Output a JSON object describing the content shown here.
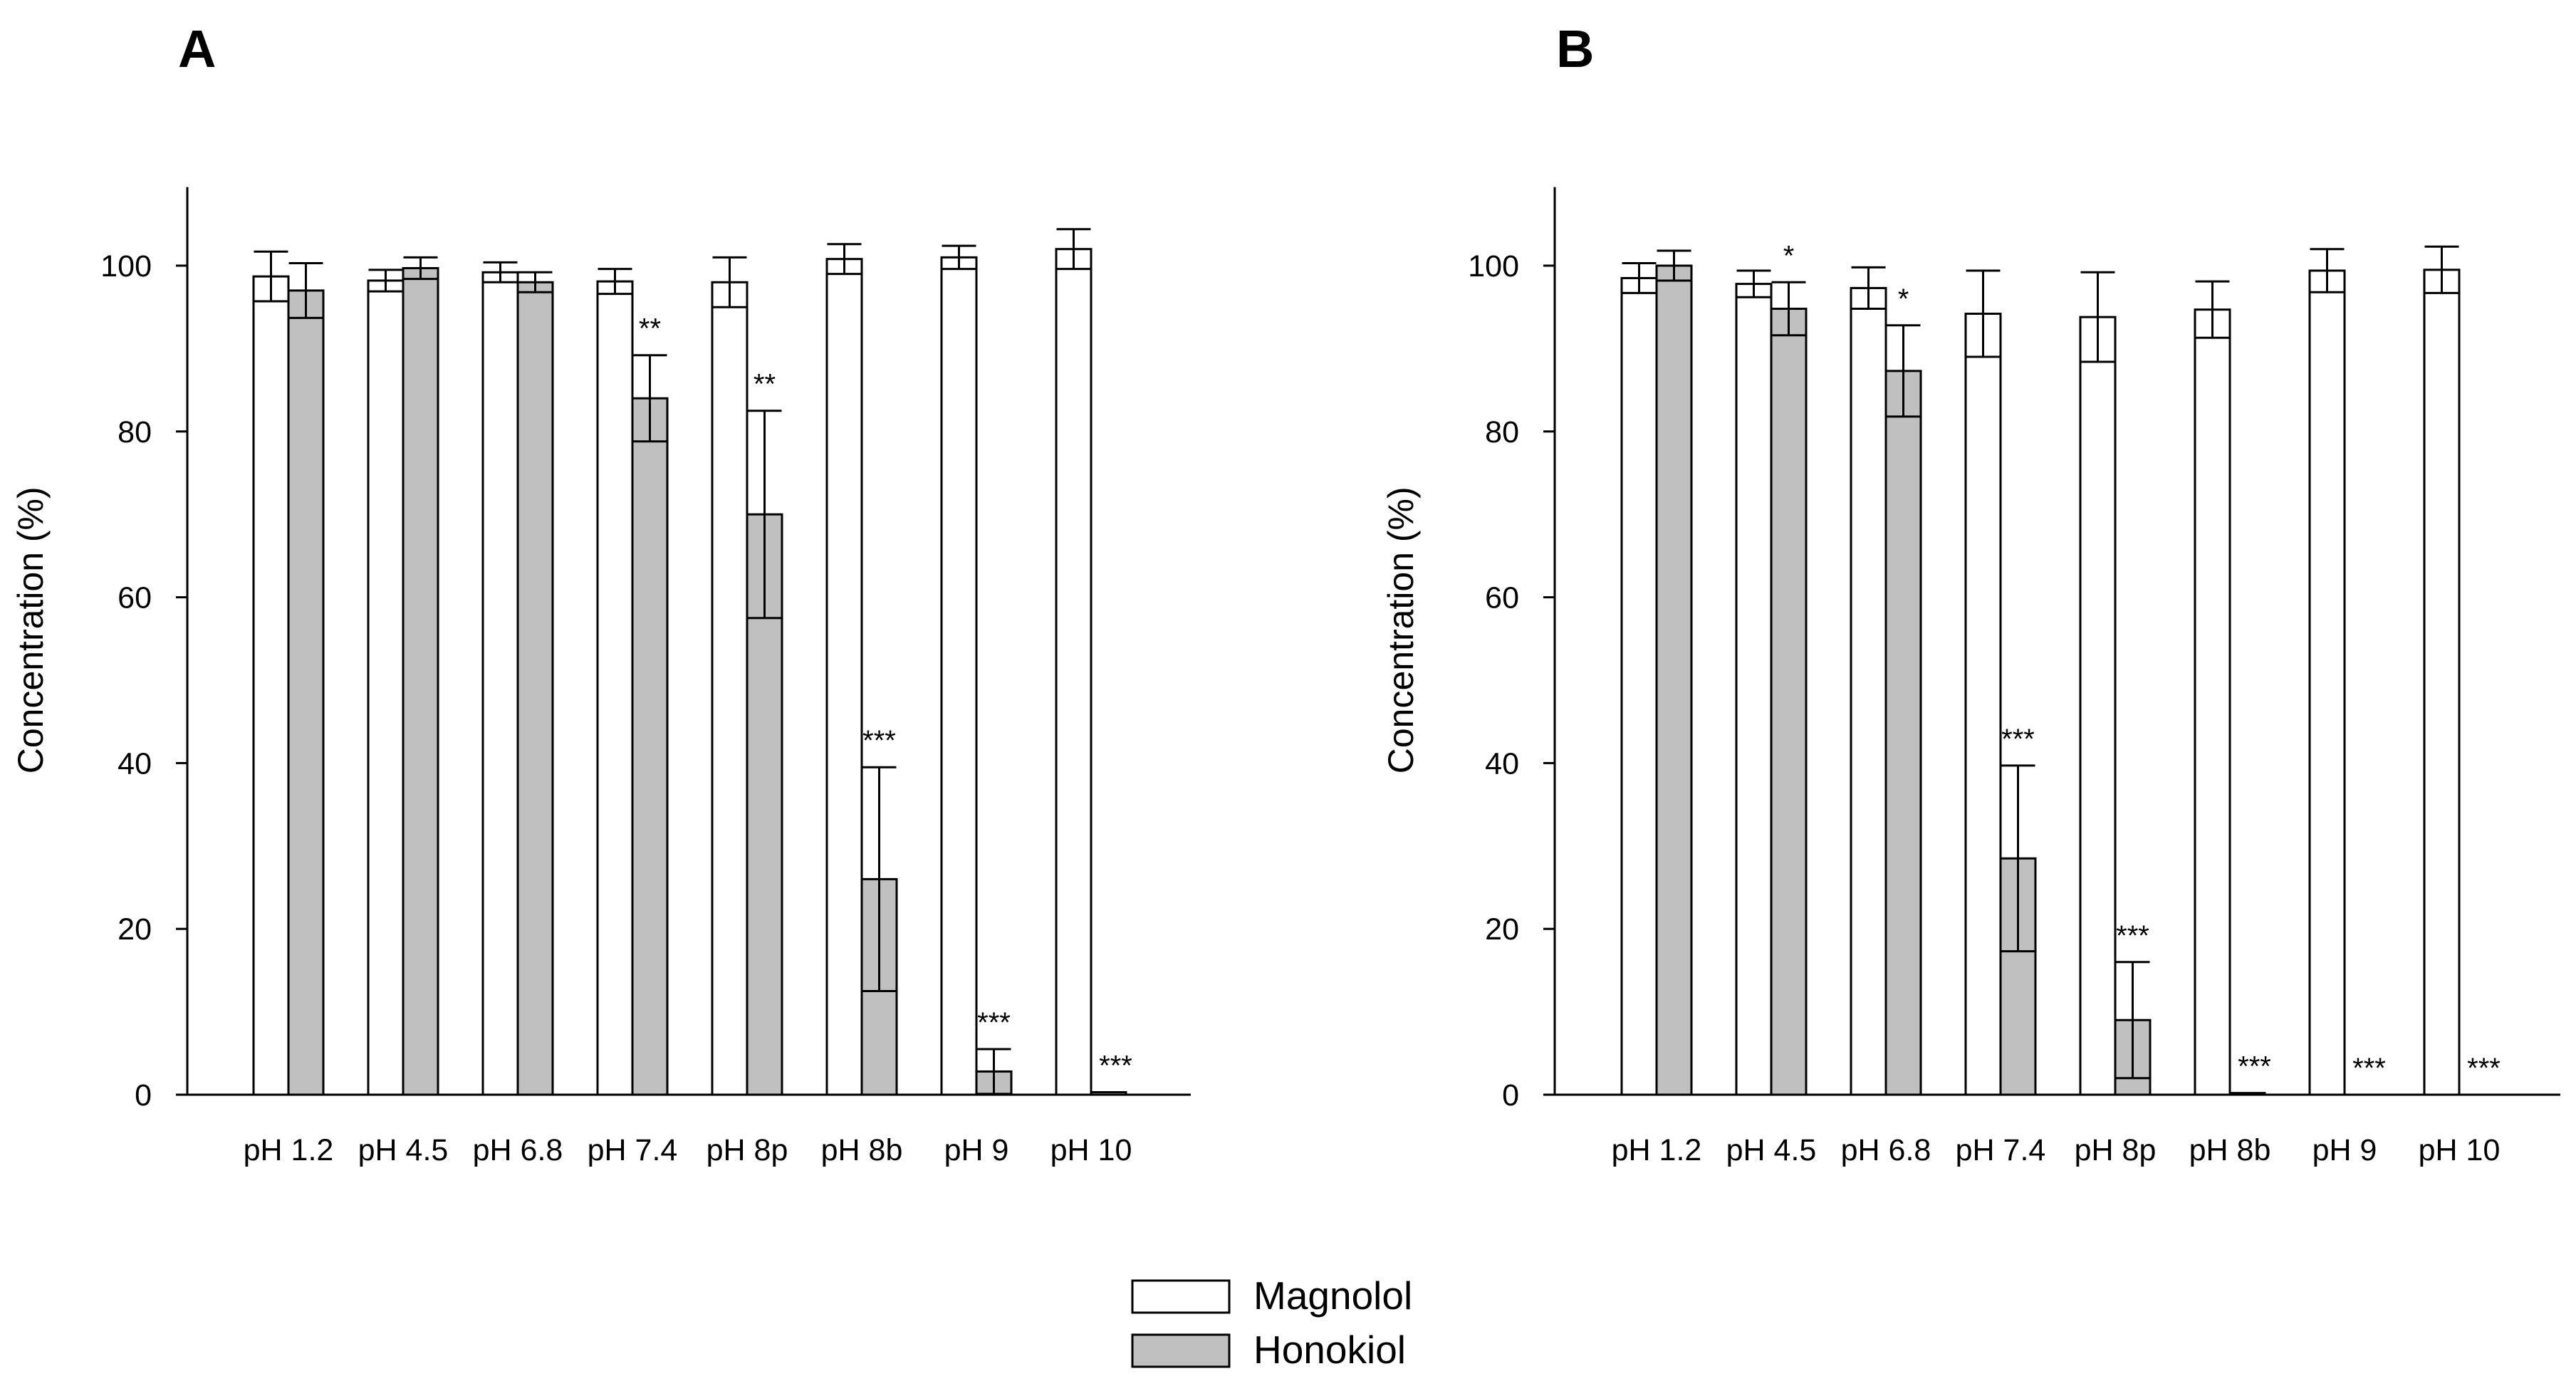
{
  "colors": {
    "magnolol_fill": "#ffffff",
    "honokiol_fill": "#c0c0c0",
    "stroke": "#000000"
  },
  "legend": {
    "entries": [
      {
        "name": "Magnolol",
        "color": "#ffffff"
      },
      {
        "name": "Honokiol",
        "color": "#c0c0c0"
      }
    ]
  },
  "chart_data": [
    {
      "type": "bar",
      "panel_label": "A",
      "ylabel": "Concentration (%)",
      "xlabel": "",
      "ylim": [
        0,
        110
      ],
      "yticks": [
        0,
        20,
        40,
        60,
        80,
        100
      ],
      "categories": [
        "pH 1.2",
        "pH 4.5",
        "pH 6.8",
        "pH 7.4",
        "pH 8p",
        "pH 8b",
        "pH 9",
        "pH 10"
      ],
      "series": [
        {
          "name": "Magnolol",
          "values": [
            98.7,
            98.2,
            99.2,
            98.1,
            98.0,
            100.8,
            101.0,
            102.0
          ],
          "errors": [
            3.0,
            1.3,
            1.2,
            1.5,
            3.0,
            1.8,
            1.4,
            2.4
          ],
          "significance": [
            "",
            "",
            "",
            "",
            "",
            "",
            "",
            ""
          ]
        },
        {
          "name": "Honokiol",
          "values": [
            97.0,
            99.7,
            98.0,
            84.0,
            70.0,
            26.0,
            2.8,
            0.3
          ],
          "errors": [
            3.3,
            1.3,
            1.2,
            5.2,
            12.5,
            13.5,
            2.7,
            0
          ],
          "significance": [
            "",
            "",
            "",
            "**",
            "**",
            "***",
            "***",
            "***"
          ]
        }
      ]
    },
    {
      "type": "bar",
      "panel_label": "B",
      "ylabel": "Concentration (%)",
      "xlabel": "",
      "ylim": [
        0,
        110
      ],
      "yticks": [
        0,
        20,
        40,
        60,
        80,
        100
      ],
      "categories": [
        "pH 1.2",
        "pH 4.5",
        "pH 6.8",
        "pH 7.4",
        "pH 8p",
        "pH 8b",
        "pH 9",
        "pH 10"
      ],
      "series": [
        {
          "name": "Magnolol",
          "values": [
            98.5,
            97.8,
            97.3,
            94.2,
            93.8,
            94.7,
            99.4,
            99.5
          ],
          "errors": [
            1.8,
            1.6,
            2.5,
            5.2,
            5.4,
            3.4,
            2.6,
            2.8
          ],
          "significance": [
            "",
            "",
            "",
            "",
            "",
            "",
            "",
            ""
          ]
        },
        {
          "name": "Honokiol",
          "values": [
            100.0,
            94.8,
            87.3,
            28.5,
            9.0,
            0.2,
            0,
            0
          ],
          "errors": [
            1.8,
            3.2,
            5.5,
            11.2,
            7.0,
            0,
            0,
            0
          ],
          "significance": [
            "",
            "*",
            "*",
            "***",
            "***",
            "***",
            "***",
            "***"
          ]
        }
      ]
    }
  ]
}
